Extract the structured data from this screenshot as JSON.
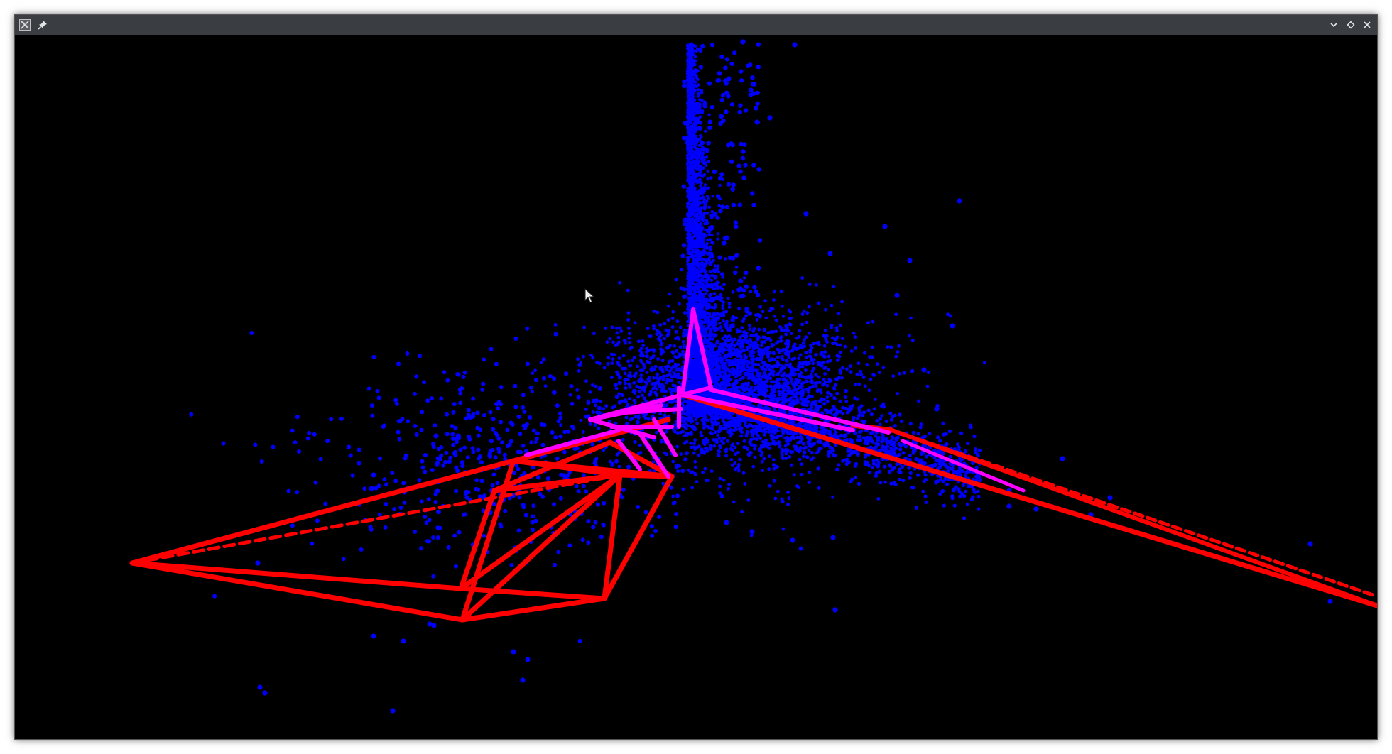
{
  "window": {
    "title": "",
    "app_icon": "x11-app-icon",
    "controls": [
      "pin-icon",
      "minimize-chevron-icon",
      "maximize-diamond-icon",
      "close-x-icon"
    ]
  },
  "viewport": {
    "content": "3d-scene",
    "background_color": "#000000",
    "colors": {
      "point_cloud": "#0000ff",
      "camera_frustums_near": "#ff00ff",
      "camera_frustums": "#ff0000"
    }
  }
}
